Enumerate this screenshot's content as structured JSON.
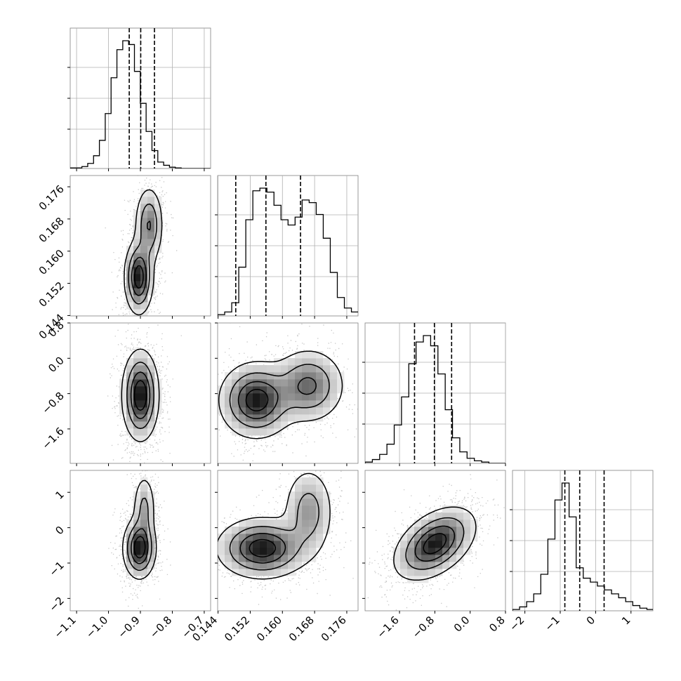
{
  "figure": {
    "style": "corner plot",
    "colors": {
      "ink": "#000000",
      "grid": "#b0b0b0",
      "panel_border": "#808080",
      "background": "#ffffff"
    }
  },
  "chart_data": {
    "type": "corner",
    "dimensions": [
      {
        "name": "",
        "range": [
          -1.12,
          -0.68
        ],
        "ticks": [
          -1.1,
          -1.0,
          -0.9,
          -0.8,
          -0.7
        ],
        "tick_labels": [
          "−1.1",
          "−1.0",
          "−0.9",
          "−0.8",
          "−0.7"
        ],
        "quantiles": [
          -0.935,
          -0.899,
          -0.856
        ],
        "hist_edges_start": -1.12,
        "hist_bin_width": 0.0183,
        "hist_counts": [
          0.005,
          0.005,
          0.015,
          0.04,
          0.1,
          0.22,
          0.43,
          0.71,
          0.93,
          1.0,
          0.97,
          0.76,
          0.51,
          0.29,
          0.14,
          0.05,
          0.025,
          0.01,
          0.005,
          0.0,
          0.0,
          0.0,
          0.0,
          0.0
        ]
      },
      {
        "name": "",
        "range": [
          0.1439,
          0.1788
        ],
        "ticks": [
          0.144,
          0.152,
          0.16,
          0.168,
          0.176
        ],
        "tick_labels": [
          "0.144",
          "0.152",
          "0.160",
          "0.168",
          "0.176"
        ],
        "quantiles": [
          0.1484,
          0.1559,
          0.1645
        ],
        "hist_edges_start": 0.1439,
        "hist_bin_width": 0.00175,
        "hist_counts": [
          0.01,
          0.03,
          0.1,
          0.37,
          0.73,
          0.95,
          0.97,
          0.94,
          0.84,
          0.73,
          0.69,
          0.75,
          0.88,
          0.86,
          0.77,
          0.59,
          0.33,
          0.14,
          0.06,
          0.03
        ]
      },
      {
        "name": "",
        "range": [
          -2.38,
          0.8
        ],
        "ticks": [
          -1.6,
          -0.8,
          0.0,
          0.8
        ],
        "tick_labels": [
          "−1.6",
          "−0.8",
          "0.0",
          "0.8"
        ],
        "quantiles": [
          -1.26,
          -0.81,
          -0.42
        ],
        "hist_edges_start": -2.38,
        "hist_bin_width": 0.165,
        "hist_counts": [
          0.01,
          0.03,
          0.07,
          0.15,
          0.3,
          0.52,
          0.78,
          0.95,
          1.0,
          0.92,
          0.7,
          0.42,
          0.2,
          0.09,
          0.04,
          0.02,
          0.01,
          0.0,
          0.0,
          0.0
        ]
      },
      {
        "name": "",
        "range": [
          -2.35,
          1.62
        ],
        "ticks": [
          -2,
          -1,
          0,
          1
        ],
        "tick_labels": [
          "−2",
          "−1",
          "0",
          "1"
        ],
        "quantiles": [
          -0.87,
          -0.45,
          0.24
        ],
        "hist_edges_start": -2.35,
        "hist_bin_width": 0.2,
        "hist_counts": [
          0.01,
          0.03,
          0.07,
          0.13,
          0.28,
          0.55,
          0.85,
          0.98,
          0.72,
          0.33,
          0.25,
          0.22,
          0.19,
          0.16,
          0.13,
          0.1,
          0.07,
          0.04,
          0.02,
          0.01
        ]
      }
    ],
    "ytick_labels": {
      "1": [
        "0.144",
        "0.152",
        "0.160",
        "0.168",
        "0.176"
      ],
      "2": [
        "−1.6",
        "−0.8",
        "0.0",
        "0.8"
      ],
      "3": [
        "−2",
        "−1",
        "0",
        "1"
      ]
    },
    "pairs": [
      {
        "x": 0,
        "y": 1,
        "modes": [
          {
            "mx": -0.905,
            "my": 0.1535,
            "sx": 0.022,
            "sy": 0.0045,
            "w": 0.62
          },
          {
            "mx": -0.873,
            "my": 0.1665,
            "sx": 0.022,
            "sy": 0.0048,
            "w": 0.38
          }
        ]
      },
      {
        "x": 0,
        "y": 2,
        "modes": [
          {
            "mx": -0.9,
            "my": -0.84,
            "sx": 0.028,
            "sy": 0.5,
            "w": 1.0
          }
        ]
      },
      {
        "x": 0,
        "y": 3,
        "modes": [
          {
            "mx": -0.903,
            "my": -0.58,
            "sx": 0.025,
            "sy": 0.42,
            "w": 0.72
          },
          {
            "mx": -0.888,
            "my": 0.55,
            "sx": 0.018,
            "sy": 0.5,
            "w": 0.28
          }
        ]
      },
      {
        "x": 1,
        "y": 2,
        "modes": [
          {
            "mx": 0.1535,
            "my": -0.95,
            "sx": 0.0045,
            "sy": 0.42,
            "w": 0.6
          },
          {
            "mx": 0.1665,
            "my": -0.62,
            "sx": 0.0045,
            "sy": 0.42,
            "w": 0.4
          }
        ]
      },
      {
        "x": 1,
        "y": 3,
        "modes": [
          {
            "mx": 0.155,
            "my": -0.58,
            "sx": 0.0055,
            "sy": 0.42,
            "w": 0.68
          },
          {
            "mx": 0.1665,
            "my": 0.45,
            "sx": 0.0032,
            "sy": 0.65,
            "w": 0.32
          }
        ]
      },
      {
        "x": 2,
        "y": 3,
        "modes": [
          {
            "mx": -0.8,
            "my": -0.45,
            "sx": 0.45,
            "sy": 0.5,
            "w": 1.0,
            "rho": 0.45
          }
        ]
      }
    ]
  }
}
